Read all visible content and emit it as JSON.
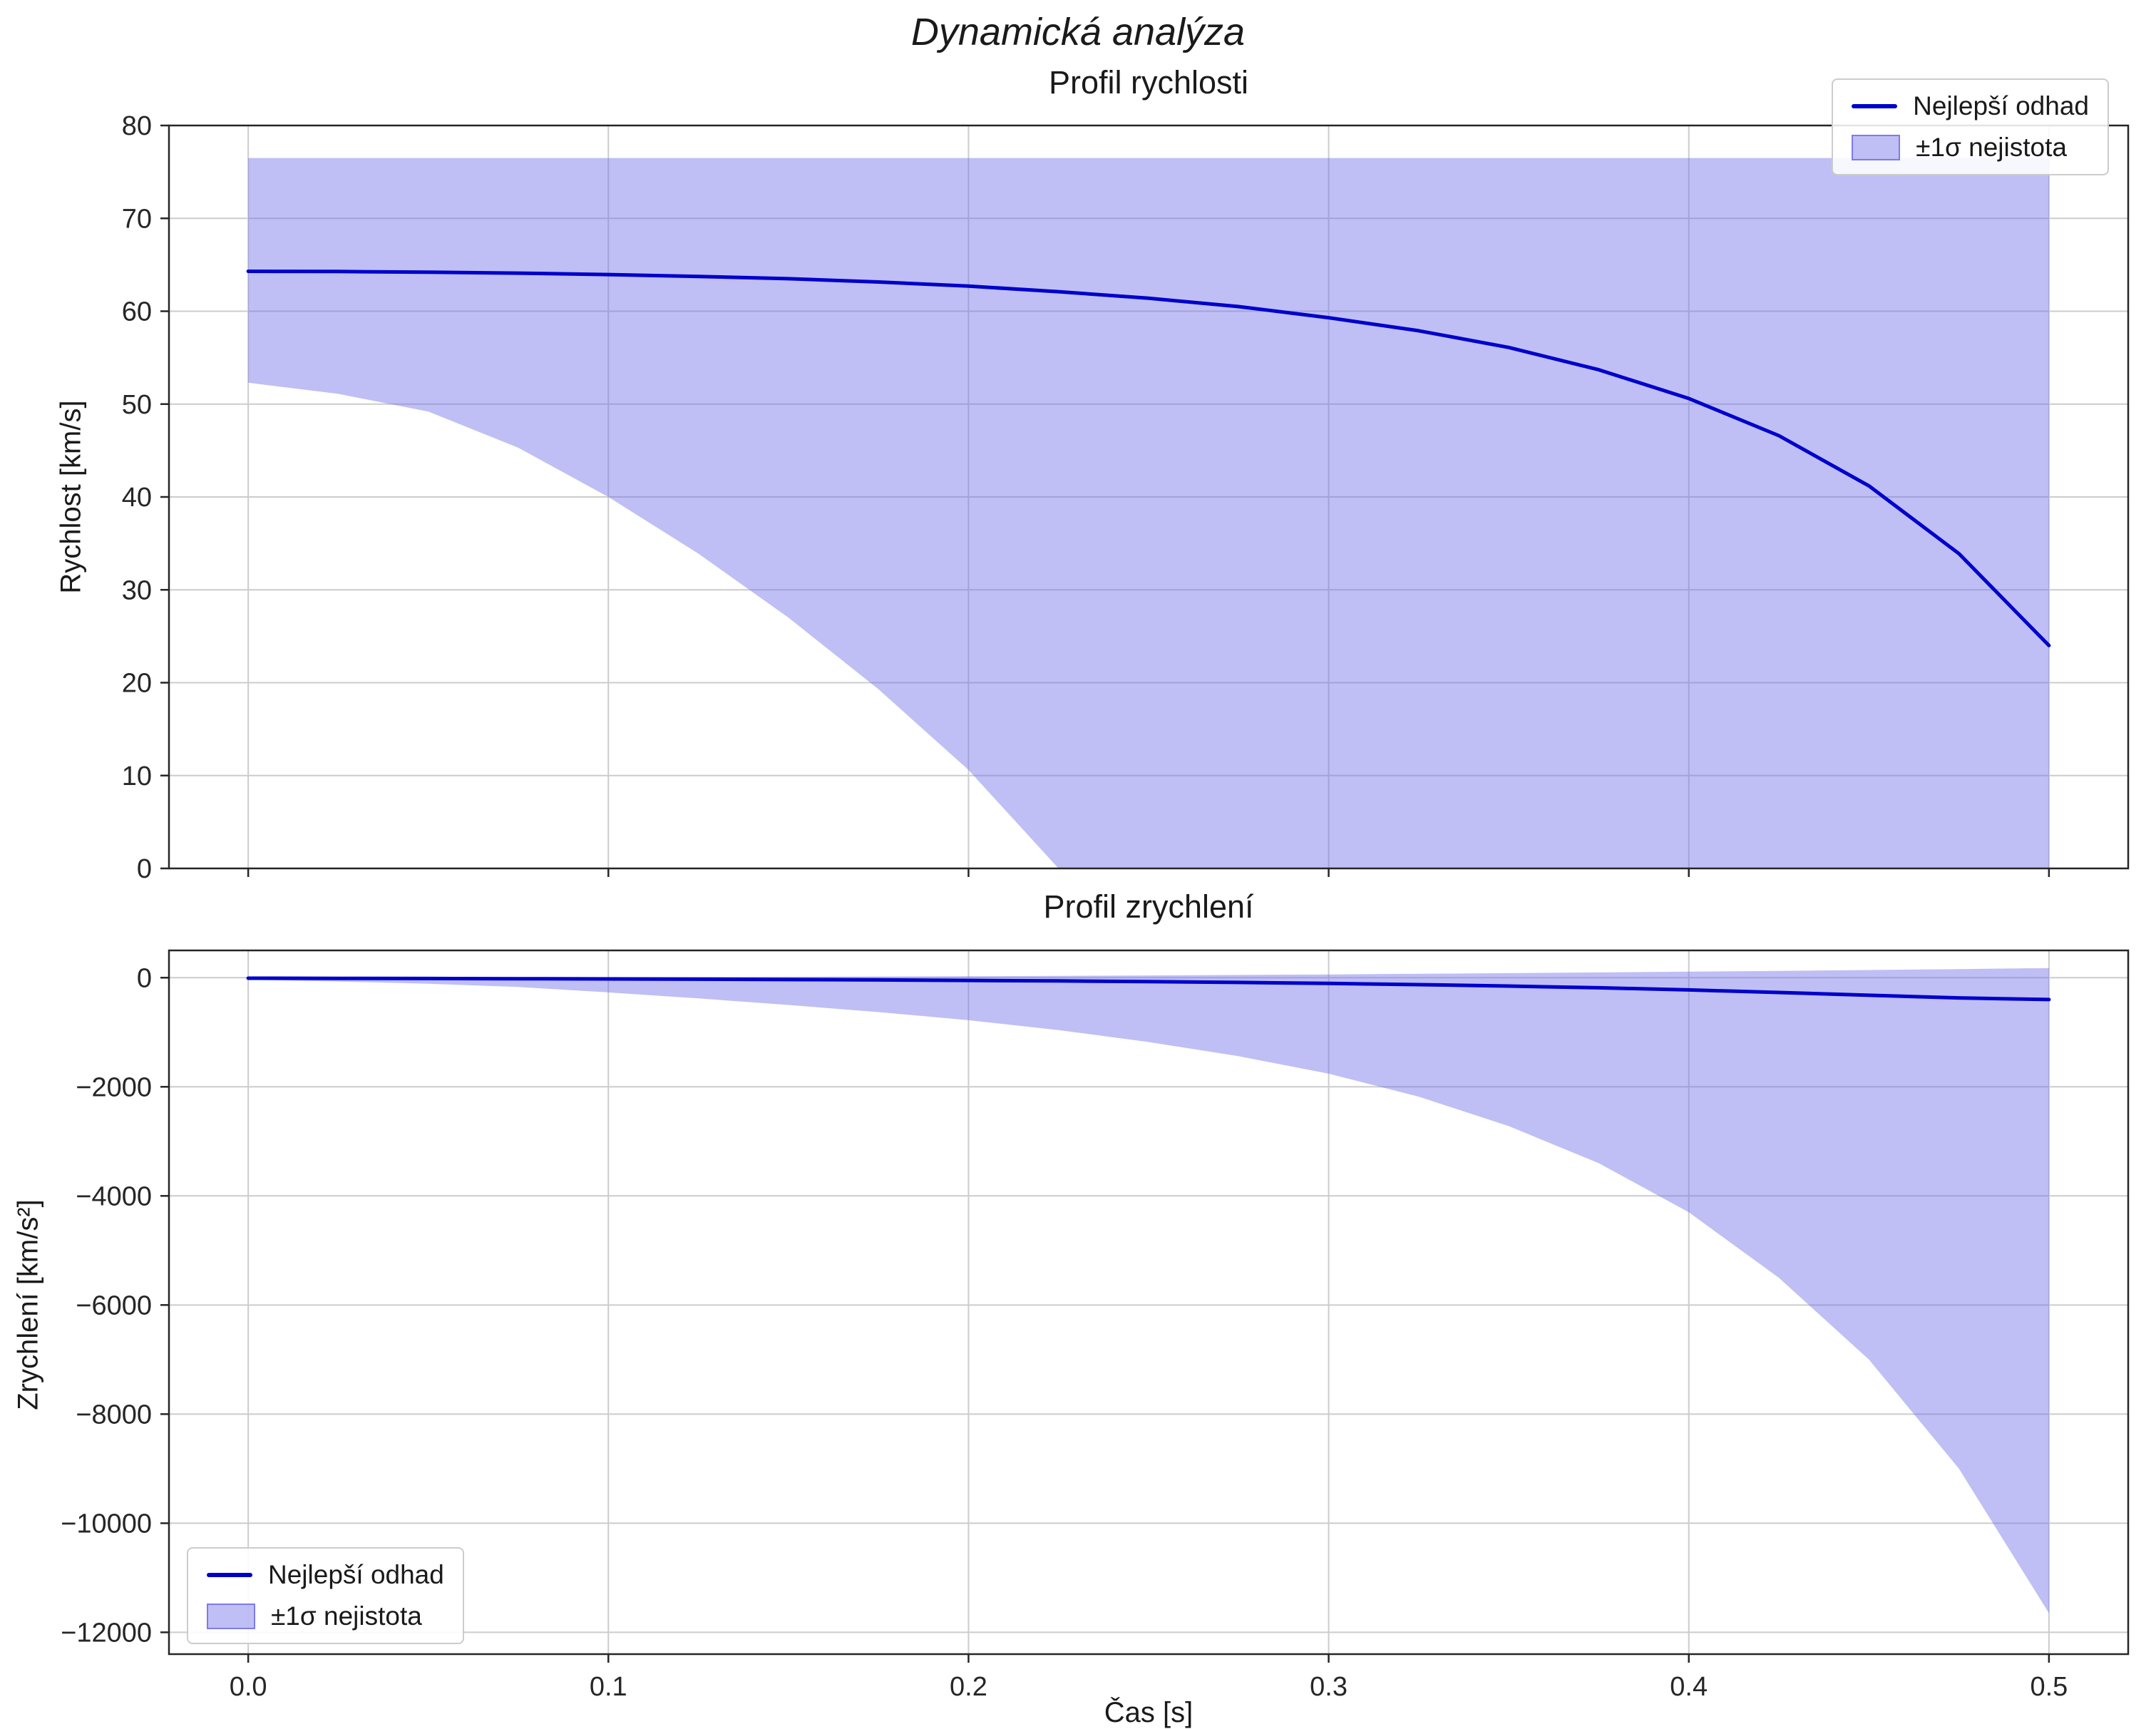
{
  "figure": {
    "suptitle": "Dynamická analýza",
    "background": "#ffffff"
  },
  "colors": {
    "line": "#0000cc",
    "band": "#7070e8",
    "band_opacity": 0.45,
    "grid": "#cccccc",
    "spine": "#262626",
    "text": "#262626"
  },
  "xlabel": "Čas [s]",
  "chart_data": [
    {
      "type": "line",
      "title": "Profil rychlosti",
      "ylabel": "Rychlost [km/s]",
      "xlabel": "",
      "xlim": [
        -0.022,
        0.522
      ],
      "ylim": [
        0,
        80
      ],
      "grid": true,
      "legend_position": "top-right",
      "show_xtick_labels": false,
      "xticks": [
        0,
        0.1,
        0.2,
        0.3,
        0.4,
        0.5
      ],
      "xtick_labels": [
        "0.0",
        "0.1",
        "0.2",
        "0.3",
        "0.4",
        "0.5"
      ],
      "yticks": [
        80,
        70,
        60,
        50,
        40,
        30,
        20,
        10,
        0
      ],
      "ytick_labels": [
        "80",
        "70",
        "60",
        "50",
        "40",
        "30",
        "20",
        "10",
        "0"
      ],
      "x": [
        0,
        0.025,
        0.05,
        0.075,
        0.1,
        0.125,
        0.15,
        0.175,
        0.2,
        0.225,
        0.25,
        0.275,
        0.3,
        0.325,
        0.35,
        0.375,
        0.4,
        0.425,
        0.45,
        0.475,
        0.5
      ],
      "series": [
        {
          "name": "Nejlepší odhad",
          "values": [
            64.3,
            64.28,
            64.2,
            64.1,
            63.95,
            63.75,
            63.5,
            63.15,
            62.7,
            62.1,
            61.4,
            60.5,
            59.3,
            57.9,
            56.1,
            53.7,
            50.6,
            46.6,
            41.2,
            33.9,
            24.0
          ]
        }
      ],
      "band": {
        "name": "±1σ nejistota",
        "upper": [
          76.5,
          76.5,
          76.5,
          76.5,
          76.5,
          76.5,
          76.5,
          76.5,
          76.5,
          76.5,
          76.5,
          76.5,
          76.5,
          76.5,
          76.5,
          76.5,
          76.5,
          76.5,
          76.5,
          76.5,
          76.5
        ],
        "lower": [
          52.3,
          51.1,
          49.2,
          45.3,
          40.0,
          33.9,
          27.0,
          19.3,
          10.6,
          0,
          0,
          0,
          0,
          0,
          0,
          0,
          0,
          0,
          0,
          0,
          0
        ]
      }
    },
    {
      "type": "line",
      "title": "Profil zrychlení",
      "ylabel": "Zrychlení [km/s²]",
      "xlabel": "Čas [s]",
      "xlim": [
        -0.022,
        0.522
      ],
      "ylim": [
        -12400,
        500
      ],
      "grid": true,
      "legend_position": "bottom-left",
      "show_xtick_labels": true,
      "xticks": [
        0,
        0.1,
        0.2,
        0.3,
        0.4,
        0.5
      ],
      "xtick_labels": [
        "0.0",
        "0.1",
        "0.2",
        "0.3",
        "0.4",
        "0.5"
      ],
      "yticks": [
        0,
        -2000,
        -4000,
        -6000,
        -8000,
        -10000,
        -12000
      ],
      "ytick_labels": [
        "0",
        "−2000",
        "−4000",
        "−6000",
        "−8000",
        "−10000",
        "−12000"
      ],
      "x": [
        0,
        0.025,
        0.05,
        0.075,
        0.1,
        0.125,
        0.15,
        0.175,
        0.2,
        0.225,
        0.25,
        0.275,
        0.3,
        0.325,
        0.35,
        0.375,
        0.4,
        0.425,
        0.45,
        0.475,
        0.5
      ],
      "series": [
        {
          "name": "Nejlepší odhad",
          "values": [
            -10,
            -12,
            -15,
            -19,
            -23,
            -28,
            -34,
            -41,
            -50,
            -60,
            -72,
            -87,
            -105,
            -127,
            -153,
            -185,
            -224,
            -271,
            -322,
            -370,
            -400
          ]
        }
      ],
      "band": {
        "name": "±1σ nejistota",
        "upper": [
          0,
          1,
          3,
          5,
          8,
          11,
          15,
          20,
          26,
          33,
          41,
          50,
          60,
          71,
          83,
          96,
          110,
          125,
          141,
          158,
          176
        ],
        "lower": [
          -40,
          -70,
          -110,
          -170,
          -270,
          -380,
          -500,
          -630,
          -780,
          -960,
          -1180,
          -1440,
          -1760,
          -2180,
          -2720,
          -3400,
          -4300,
          -5500,
          -7000,
          -9000,
          -11650
        ]
      }
    }
  ]
}
